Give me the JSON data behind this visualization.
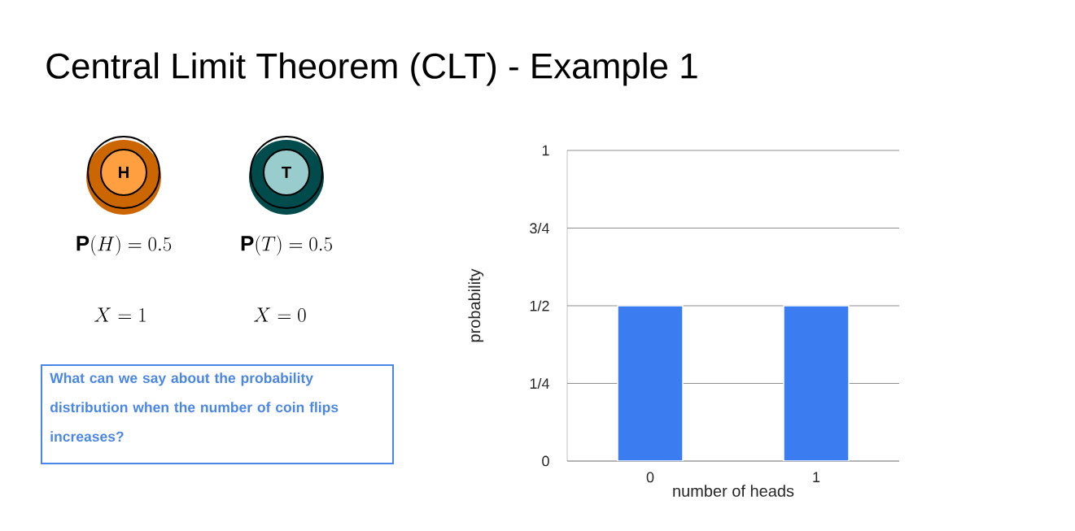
{
  "chart_data": {
    "type": "bar",
    "title": "Central Limit Theorem (CLT) - Example 1",
    "xlabel": "number of heads",
    "ylabel": "probability",
    "categories": [
      "0",
      "1"
    ],
    "values": [
      0.5,
      0.5
    ],
    "color": "#3b7cf0",
    "ylim": [
      0,
      1
    ],
    "yticks": [
      0,
      {
        "value": 0.25,
        "label": "1/4"
      },
      {
        "value": 0.5,
        "label": "1/2"
      },
      {
        "value": 0.75,
        "label": "3/4"
      },
      1
    ],
    "grid": "y",
    "annotations": [
      "H",
      "T",
      "\\mathbf{P}(H) = 0.5",
      "\\mathbf{P}(T) = 0.5",
      "X = 1",
      "X = 0",
      "What can we say about the probability distribution when the number of coin flips increases?"
    ]
  }
}
